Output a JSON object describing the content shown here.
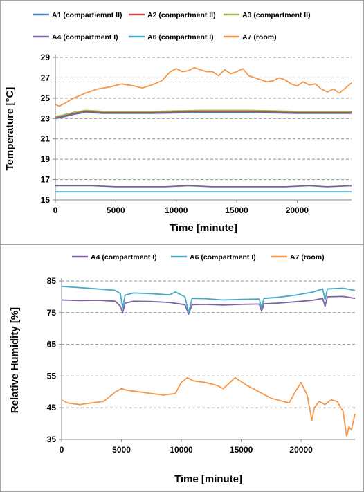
{
  "chart_data": [
    {
      "type": "line",
      "title": "",
      "xlabel": "Time [minute]",
      "ylabel": "Temperature [°C]",
      "xlim": [
        0,
        24500
      ],
      "ylim": [
        15,
        29
      ],
      "x_ticks": [
        0,
        5000,
        10000,
        15000,
        20000
      ],
      "y_ticks": [
        15,
        17,
        19,
        21,
        23,
        25,
        27,
        29
      ],
      "grid": "horizontal dashed",
      "legend_position": "top",
      "series": [
        {
          "name": "A1 (compartiemnt II)",
          "color": "#4a7ebb",
          "x": [
            0,
            500,
            1500,
            2500,
            4000,
            8000,
            12000,
            16000,
            20000,
            24500
          ],
          "y": [
            23.0,
            23.1,
            23.4,
            23.6,
            23.5,
            23.5,
            23.6,
            23.6,
            23.5,
            23.5
          ]
        },
        {
          "name": "A2 (compartment II)",
          "color": "#be4b48",
          "x": [
            0,
            500,
            1500,
            2500,
            4000,
            8000,
            12000,
            16000,
            20000,
            24500
          ],
          "y": [
            23.1,
            23.2,
            23.5,
            23.7,
            23.6,
            23.6,
            23.7,
            23.7,
            23.6,
            23.6
          ]
        },
        {
          "name": "A3 (compartment II)",
          "color": "#98b954",
          "x": [
            0,
            500,
            1500,
            2500,
            4000,
            8000,
            12000,
            16000,
            20000,
            24500
          ],
          "y": [
            23.2,
            23.3,
            23.6,
            23.8,
            23.7,
            23.7,
            23.8,
            23.8,
            23.7,
            23.7
          ]
        },
        {
          "name": "A4 (compartment I)",
          "color": "#7d60a0",
          "x": [
            0,
            3000,
            5000,
            7000,
            9000,
            11000,
            13000,
            15000,
            17000,
            19000,
            21000,
            22500,
            24500
          ],
          "y": [
            16.4,
            16.4,
            16.3,
            16.3,
            16.3,
            16.4,
            16.3,
            16.3,
            16.3,
            16.3,
            16.4,
            16.3,
            16.4
          ]
        },
        {
          "name": "A6 (compartment I)",
          "color": "#46aac5",
          "x": [
            0,
            5000,
            10000,
            15000,
            20000,
            24500
          ],
          "y": [
            15.8,
            15.8,
            15.8,
            15.8,
            15.8,
            15.8
          ]
        },
        {
          "name": "A7 (room)",
          "color": "#f79646",
          "x": [
            0,
            300,
            800,
            1500,
            2500,
            3500,
            4500,
            5500,
            6500,
            7200,
            8000,
            8800,
            9500,
            10000,
            10500,
            11000,
            11500,
            12000,
            12500,
            13000,
            13500,
            14000,
            14500,
            15000,
            15500,
            16000,
            16500,
            17000,
            17500,
            18000,
            18500,
            19000,
            19500,
            20000,
            20500,
            21000,
            21500,
            22000,
            22500,
            23000,
            23500,
            24000,
            24500
          ],
          "y": [
            24.4,
            24.2,
            24.5,
            25.0,
            25.5,
            25.9,
            26.1,
            26.4,
            26.2,
            26.0,
            26.3,
            26.7,
            27.6,
            27.9,
            27.6,
            27.7,
            28.0,
            27.8,
            27.6,
            27.6,
            27.2,
            27.8,
            27.4,
            27.6,
            27.9,
            27.2,
            27.0,
            26.8,
            26.6,
            26.7,
            27.0,
            26.8,
            26.4,
            26.2,
            26.6,
            26.3,
            26.4,
            25.9,
            25.6,
            25.9,
            25.5,
            26.0,
            26.5
          ]
        }
      ]
    },
    {
      "type": "line",
      "title": "",
      "xlabel": "Time [minute]",
      "ylabel": "Relative Humidity [%]",
      "xlim": [
        0,
        24500
      ],
      "ylim": [
        35,
        85
      ],
      "x_ticks": [
        0,
        5000,
        10000,
        15000,
        20000
      ],
      "y_ticks": [
        35,
        45,
        55,
        65,
        75,
        85
      ],
      "grid": "horizontal dashed",
      "legend_position": "top",
      "series": [
        {
          "name": "A4 (compartment I)",
          "color": "#7d60a0",
          "x": [
            0,
            1500,
            3000,
            4500,
            4900,
            5100,
            5300,
            6000,
            7500,
            9000,
            10300,
            10600,
            10900,
            12000,
            13500,
            15000,
            16500,
            16700,
            16900,
            18000,
            19500,
            21000,
            21800,
            22000,
            22200,
            23500,
            24500
          ],
          "y": [
            79.0,
            78.8,
            78.9,
            78.6,
            77.0,
            75.0,
            78.0,
            78.6,
            78.5,
            78.2,
            77.5,
            74.5,
            77.5,
            77.6,
            77.4,
            77.6,
            77.7,
            75.5,
            77.8,
            78.0,
            78.4,
            78.9,
            79.5,
            77.0,
            80.0,
            80.1,
            79.5
          ]
        },
        {
          "name": "A6 (compartment I)",
          "color": "#46aac5",
          "x": [
            0,
            1500,
            3000,
            4500,
            4900,
            5100,
            5300,
            6000,
            7500,
            9000,
            9500,
            10300,
            10600,
            10900,
            12000,
            13500,
            15000,
            16500,
            16700,
            16900,
            18000,
            19500,
            21000,
            21800,
            22000,
            22200,
            23500,
            24500
          ],
          "y": [
            83.3,
            82.9,
            82.5,
            82.0,
            81.0,
            76.5,
            80.5,
            81.2,
            81.0,
            80.6,
            81.5,
            80.0,
            75.0,
            79.5,
            79.4,
            79.0,
            79.2,
            79.3,
            76.5,
            79.5,
            79.8,
            80.5,
            81.5,
            82.5,
            79.0,
            82.5,
            82.7,
            82.0
          ]
        },
        {
          "name": "A7 (room)",
          "color": "#f79646",
          "x": [
            0,
            500,
            1500,
            2500,
            3500,
            4500,
            5000,
            5500,
            6500,
            7500,
            8500,
            9500,
            10000,
            10500,
            11000,
            12000,
            13000,
            13500,
            14500,
            15500,
            16500,
            17500,
            18500,
            19000,
            19500,
            20000,
            20500,
            20900,
            21100,
            21500,
            22000,
            22500,
            23000,
            23500,
            23800,
            24000,
            24200,
            24500
          ],
          "y": [
            47.5,
            46.5,
            46.0,
            46.5,
            47.0,
            50.0,
            51.0,
            50.5,
            50.0,
            49.5,
            49.0,
            49.5,
            53.0,
            54.5,
            53.5,
            53.0,
            52.0,
            51.0,
            54.5,
            52.0,
            50.0,
            48.0,
            47.0,
            46.5,
            50.0,
            53.0,
            49.0,
            41.0,
            45.0,
            47.0,
            46.0,
            47.5,
            47.0,
            44.0,
            36.0,
            39.0,
            38.0,
            43.0
          ]
        }
      ]
    }
  ]
}
